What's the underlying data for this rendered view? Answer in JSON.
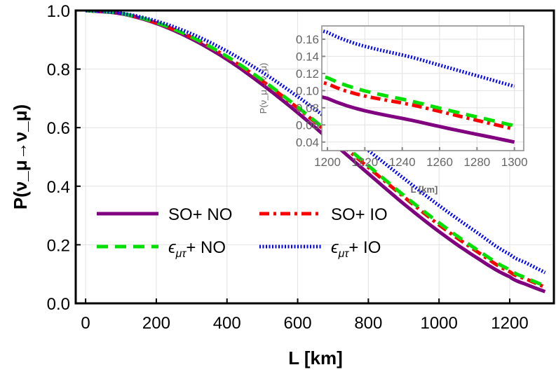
{
  "chart_data": {
    "type": "line",
    "xlabel": "L [km]",
    "ylabel": "P(ν_μ→ν_μ)",
    "xlim": [
      -28,
      1325
    ],
    "ylim": [
      0,
      1.0
    ],
    "xticks": [
      0,
      200,
      400,
      600,
      800,
      1000,
      1200
    ],
    "yticks": [
      0.0,
      0.2,
      0.4,
      0.6,
      0.8,
      1.0
    ],
    "xtick_labels": [
      "0",
      "200",
      "400",
      "600",
      "800",
      "1000",
      "1200"
    ],
    "ytick_labels": [
      "0.0",
      "0.2",
      "0.4",
      "0.6",
      "0.8",
      "1.0"
    ],
    "grid": true,
    "legend_placement": "center-left",
    "x": [
      0,
      100,
      200,
      300,
      400,
      500,
      600,
      700,
      800,
      900,
      1000,
      1100,
      1200,
      1250,
      1300
    ],
    "series": [
      {
        "name": "SO+ NO",
        "color": "#800080",
        "style": "solid",
        "values": [
          1,
          0.989,
          0.956,
          0.903,
          0.833,
          0.747,
          0.651,
          0.548,
          0.443,
          0.34,
          0.245,
          0.161,
          0.091,
          0.063,
          0.04
        ]
      },
      {
        "name": "SO+ IO",
        "color": "#ff0000",
        "style": "dash-dot",
        "values": [
          1,
          0.99,
          0.958,
          0.908,
          0.841,
          0.759,
          0.667,
          0.567,
          0.464,
          0.364,
          0.268,
          0.183,
          0.108,
          0.081,
          0.055
        ]
      },
      {
        "name": "ϵ_μτ+ NO",
        "color": "#00e000",
        "style": "dashed",
        "values": [
          1,
          0.99,
          0.959,
          0.909,
          0.843,
          0.762,
          0.67,
          0.572,
          0.47,
          0.369,
          0.275,
          0.189,
          0.115,
          0.085,
          0.059
        ]
      },
      {
        "name": "ϵ_μτ+ IO",
        "color": "#0000ff",
        "style": "dotted",
        "values": [
          1,
          0.991,
          0.964,
          0.92,
          0.861,
          0.789,
          0.706,
          0.616,
          0.522,
          0.427,
          0.334,
          0.248,
          0.168,
          0.136,
          0.105
        ]
      }
    ],
    "inset": {
      "xlabel": "L [km]",
      "ylabel": "P(ν_μ→ν_μ)",
      "xlim": [
        1197,
        1305
      ],
      "ylim": [
        0.03,
        0.1755
      ],
      "xticks": [
        1200,
        1220,
        1240,
        1260,
        1280,
        1300
      ],
      "yticks": [
        0.04,
        0.06,
        0.08,
        0.1,
        0.12,
        0.14,
        0.16
      ],
      "xtick_labels": [
        "1200",
        "1220",
        "1240",
        "1260",
        "1280",
        "1300"
      ],
      "ytick_labels": [
        "0.04",
        "0.06",
        "0.08",
        "0.10",
        "0.12",
        "0.14",
        "0.16"
      ]
    }
  }
}
